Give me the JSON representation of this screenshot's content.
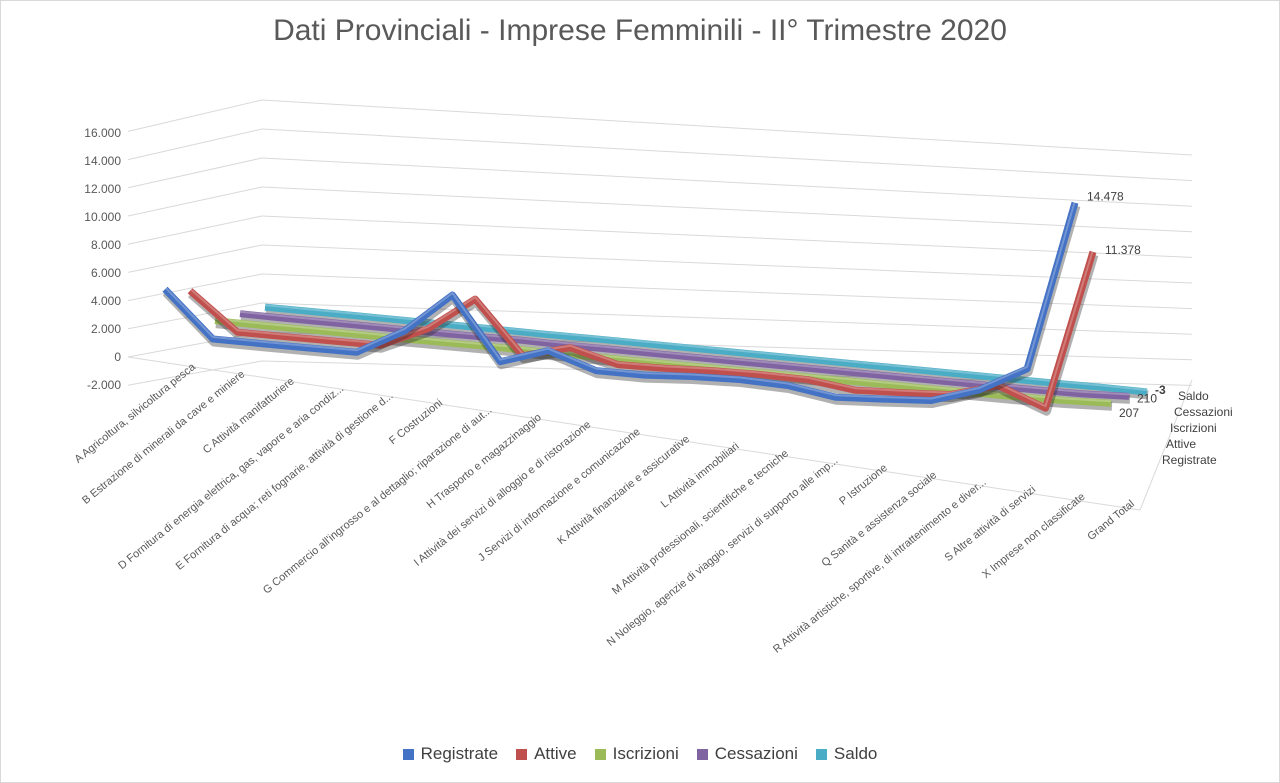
{
  "chart_data": {
    "type": "line",
    "title": "Dati Provinciali - Imprese Femminili - II° Trimestre 2020",
    "categories": [
      "A Agricoltura, silvicoltura pesca",
      "B Estrazione di minerali da cave e miniere",
      "C Attività manifatturiere",
      "D Fornitura di energia elettrica, gas, vapore e aria condiz...",
      "E Fornitura di acqua; reti fognarie, attività di gestione d...",
      "F Costruzioni",
      "G Commercio all'ingrosso e al dettaglio; riparazione di aut...",
      "H Trasporto e magazzinaggio",
      "I Attività dei servizi di alloggio e di ristorazione",
      "J Servizi di informazione e comunicazione",
      "K Attività finanziarie e assicurative",
      "L Attività immobiliari",
      "M Attività professionali, scientifiche e tecniche",
      "N Noleggio, agenzie di viaggio, servizi di supporto alle imp...",
      "P Istruzione",
      "Q Sanità e assistenza sociale",
      "R Attività artistiche, sportive, di intrattenimento e diver...",
      "S Altre attività di servizi",
      "X Imprese non classificate",
      "Grand Total"
    ],
    "series": [
      {
        "name": "Registrate",
        "color": "#4472c4",
        "values": [
          2900,
          30,
          20,
          30,
          40,
          1700,
          4300,
          300,
          1300,
          300,
          300,
          500,
          600,
          500,
          30,
          200,
          400,
          1400,
          3100,
          14478
        ],
        "end_label": "14.478"
      },
      {
        "name": "Attive",
        "color": "#c0504d",
        "values": [
          2500,
          20,
          20,
          30,
          40,
          1450,
          3800,
          250,
          1100,
          250,
          300,
          450,
          500,
          450,
          25,
          170,
          350,
          1300,
          20,
          11378
        ],
        "end_label": "11.378"
      },
      {
        "name": "Iscrizioni",
        "color": "#9bbb59",
        "values": [
          20,
          0,
          0,
          0,
          0,
          10,
          30,
          5,
          10,
          5,
          5,
          5,
          8,
          5,
          1,
          3,
          5,
          10,
          80,
          207
        ],
        "end_label": "207"
      },
      {
        "name": "Cessazioni",
        "color": "#8064a2",
        "values": [
          25,
          0,
          0,
          0,
          0,
          15,
          50,
          5,
          15,
          5,
          5,
          5,
          8,
          5,
          1,
          3,
          5,
          10,
          50,
          210
        ],
        "end_label": "210"
      },
      {
        "name": "Saldo",
        "color": "#4bacc6",
        "values": [
          -5,
          0,
          0,
          0,
          0,
          -5,
          -20,
          0,
          -5,
          0,
          0,
          0,
          0,
          0,
          0,
          0,
          0,
          0,
          30,
          -3
        ],
        "end_label": "-3"
      }
    ],
    "y_ticks": [
      "16.000",
      "14.000",
      "12.000",
      "10.000",
      "8.000",
      "6.000",
      "4.000",
      "2.000",
      "0",
      "-2.000"
    ],
    "ylim": [
      -2000,
      16000
    ],
    "legend_position": "bottom",
    "grid": true,
    "depth_axis_labels": [
      "Saldo",
      "Cessazioni",
      "Iscrizioni",
      "Attive",
      "Registrate"
    ]
  }
}
